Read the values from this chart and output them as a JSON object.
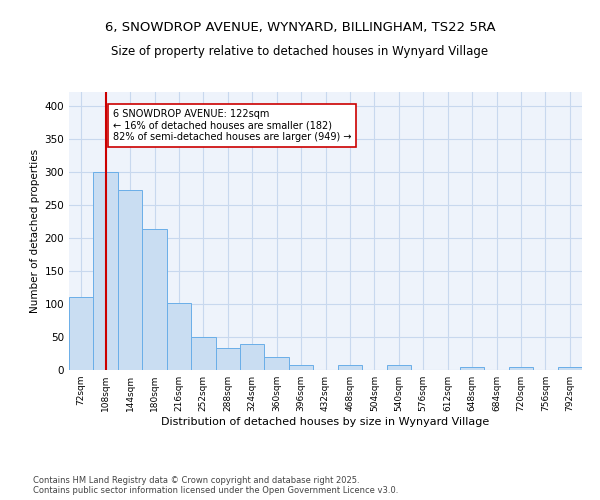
{
  "title1": "6, SNOWDROP AVENUE, WYNYARD, BILLINGHAM, TS22 5RA",
  "title2": "Size of property relative to detached houses in Wynyard Village",
  "xlabel": "Distribution of detached houses by size in Wynyard Village",
  "ylabel": "Number of detached properties",
  "bar_labels": [
    "72sqm",
    "108sqm",
    "144sqm",
    "180sqm",
    "216sqm",
    "252sqm",
    "288sqm",
    "324sqm",
    "360sqm",
    "396sqm",
    "432sqm",
    "468sqm",
    "504sqm",
    "540sqm",
    "576sqm",
    "612sqm",
    "648sqm",
    "684sqm",
    "720sqm",
    "756sqm",
    "792sqm"
  ],
  "bar_values": [
    110,
    300,
    273,
    214,
    102,
    50,
    33,
    40,
    20,
    7,
    0,
    7,
    0,
    7,
    0,
    0,
    5,
    0,
    5,
    0,
    5
  ],
  "bar_color": "#c9ddf2",
  "bar_edge_color": "#6aaee8",
  "vline_x": 1,
  "vline_color": "#cc0000",
  "annotation_text": "6 SNOWDROP AVENUE: 122sqm\n← 16% of detached houses are smaller (182)\n82% of semi-detached houses are larger (949) →",
  "annotation_box_color": "white",
  "annotation_box_edge": "#cc0000",
  "footer": "Contains HM Land Registry data © Crown copyright and database right 2025.\nContains public sector information licensed under the Open Government Licence v3.0.",
  "ylim": [
    0,
    420
  ],
  "yticks": [
    0,
    50,
    100,
    150,
    200,
    250,
    300,
    350,
    400
  ],
  "fig_bg_color": "#ffffff",
  "plot_bg_color": "#eef3fb"
}
